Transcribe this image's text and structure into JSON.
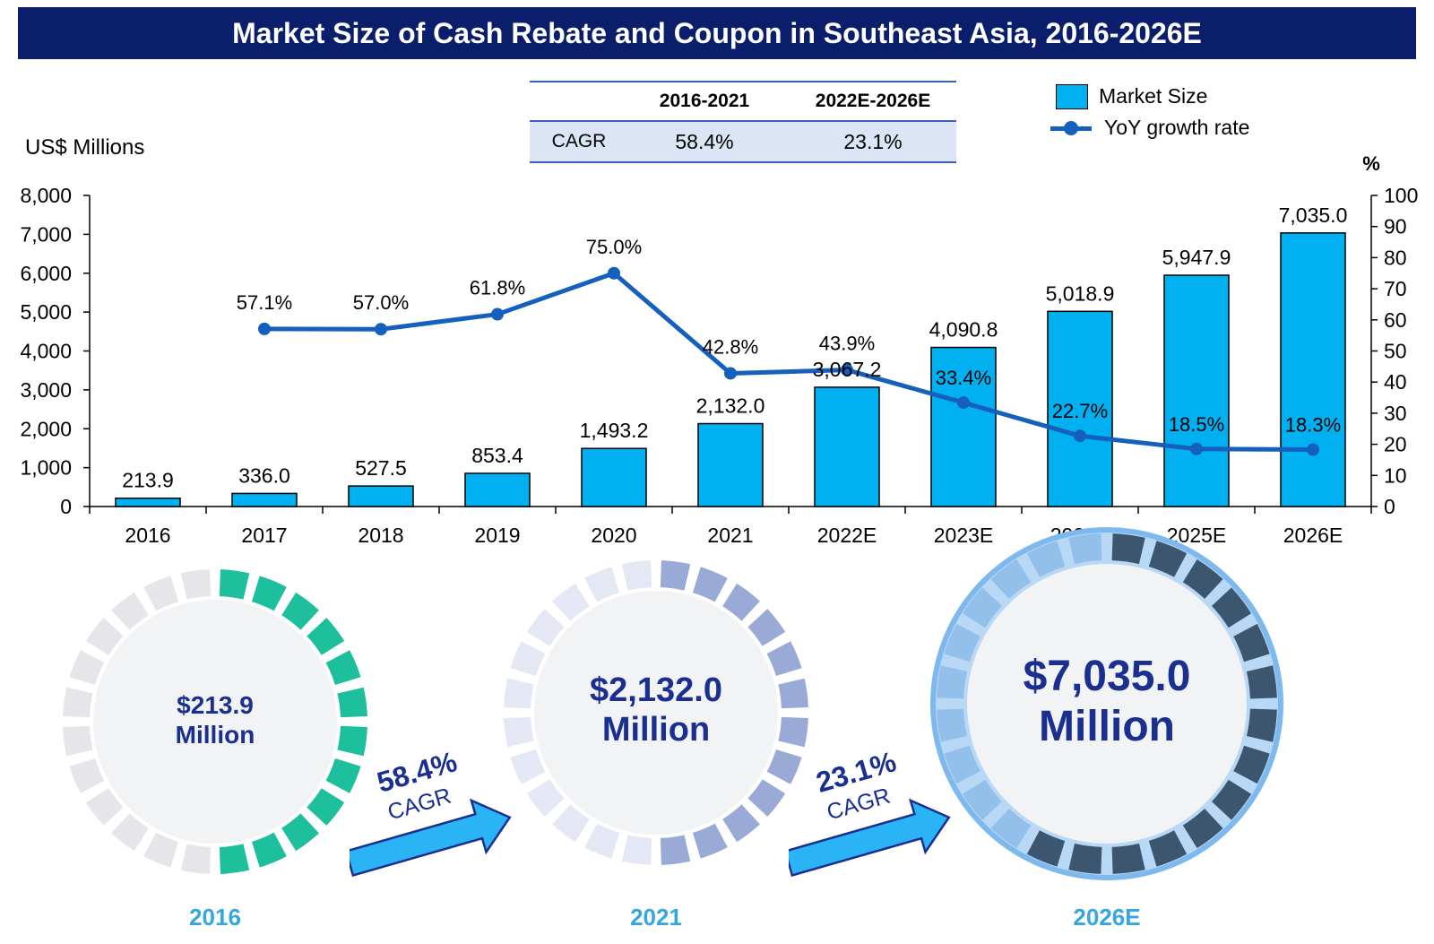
{
  "title": "Market Size of Cash Rebate and Coupon in Southeast Asia, 2016-2026E",
  "cagr_table": {
    "headers": [
      "",
      "2016-2021",
      "2022E-2026E"
    ],
    "row_label": "CAGR",
    "values": [
      "58.4%",
      "23.1%"
    ]
  },
  "legend": {
    "bar_label": "Market Size",
    "line_label": "YoY growth rate"
  },
  "colors": {
    "title_bg": "#0b1e6b",
    "bar": "#00b0f0",
    "line": "#1560bd",
    "green_segment": "#1dbf9c",
    "blue_segment": "#9aaad6",
    "dark_segment": "#3d5670",
    "text_blue": "#1a2f8f",
    "year_blue": "#37a6e0"
  },
  "chart_data": {
    "type": "bar",
    "categories": [
      "2016",
      "2017",
      "2018",
      "2019",
      "2020",
      "2021",
      "2022E",
      "2023E",
      "2024E",
      "2025E",
      "2026E"
    ],
    "series": [
      {
        "name": "Market Size",
        "type": "bar",
        "axis": "left",
        "values": [
          213.9,
          336.0,
          527.5,
          853.4,
          1493.2,
          2132.0,
          3067.2,
          4090.8,
          5018.9,
          5947.9,
          7035.0
        ]
      },
      {
        "name": "YoY growth rate",
        "type": "line",
        "axis": "right",
        "values": [
          null,
          57.1,
          57.0,
          61.8,
          75.0,
          42.8,
          43.9,
          33.4,
          22.7,
          18.5,
          18.3
        ]
      }
    ],
    "bar_labels": [
      "213.9",
      "336.0",
      "527.5",
      "853.4",
      "1,493.2",
      "2,132.0",
      "3,067.2",
      "4,090.8",
      "5,018.9",
      "5,947.9",
      "7,035.0"
    ],
    "line_labels": [
      "",
      "57.1%",
      "57.0%",
      "61.8%",
      "75.0%",
      "42.8%",
      "43.9%",
      "33.4%",
      "22.7%",
      "18.5%",
      "18.3%"
    ],
    "ylabel": "US$ Millions",
    "ylabel_right": "%",
    "ylim": [
      0,
      8000
    ],
    "ylim_right": [
      0,
      100
    ],
    "yticks": [
      "0",
      "1,000",
      "2,000",
      "3,000",
      "4,000",
      "5,000",
      "6,000",
      "7,000",
      "8,000"
    ],
    "yticks_right": [
      "0",
      "10",
      "20",
      "30",
      "40",
      "50",
      "60",
      "70",
      "80",
      "90",
      "100"
    ],
    "grid": false,
    "legend_position": "top-right"
  },
  "circles": [
    {
      "value": "$213.9",
      "unit": "Million",
      "year": "2016",
      "fill_fraction": 0.5,
      "style": "green"
    },
    {
      "value": "$2,132.0",
      "unit": "Million",
      "year": "2021",
      "fill_fraction": 0.5,
      "style": "blue"
    },
    {
      "value": "$7,035.0",
      "unit": "Million",
      "year": "2026E",
      "fill_fraction": 0.6,
      "style": "dark"
    }
  ],
  "arrows": [
    {
      "pct": "58.4%",
      "label": "CAGR"
    },
    {
      "pct": "23.1%",
      "label": "CAGR"
    }
  ]
}
